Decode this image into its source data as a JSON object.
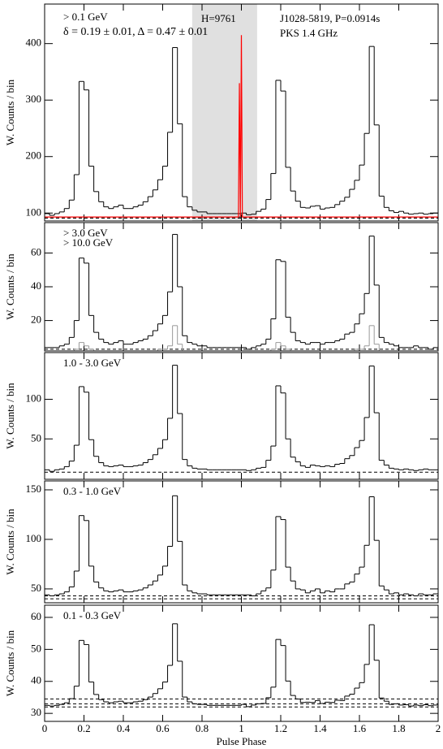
{
  "chart_data": [
    {
      "type": "histogram",
      "ylabel": "W. Counts / bin",
      "xlim": [
        0,
        2
      ],
      "ylim": [
        86,
        470
      ],
      "yticks": [
        100,
        200,
        300,
        400
      ],
      "shade": [
        0.75,
        1.08
      ],
      "shade_color": "#e0e0e0",
      "background_levels": [
        91,
        93
      ],
      "annotations": [
        {
          "text": "δ = 0.19 ± 0.01, Δ = 0.47 ± 0.01",
          "color": "#ff0000"
        },
        {
          "text": "H=9761",
          "color": "#000000"
        },
        {
          "text": "J1028-5819, P=0.0914s",
          "color": "#00cc00"
        }
      ],
      "bins": [
        0,
        0.025,
        0.05,
        0.075,
        0.1,
        0.125,
        0.15,
        0.175,
        0.2,
        0.225,
        0.25,
        0.275,
        0.3,
        0.325,
        0.35,
        0.375,
        0.4,
        0.425,
        0.45,
        0.475,
        0.5,
        0.525,
        0.55,
        0.575,
        0.6,
        0.625,
        0.65,
        0.675,
        0.7,
        0.725,
        0.75,
        0.775,
        0.8,
        0.825,
        0.85,
        0.875,
        0.9,
        0.925,
        0.95,
        0.975,
        1,
        1.025,
        1.05,
        1.075,
        1.1,
        1.125,
        1.15,
        1.175,
        1.2,
        1.225,
        1.25,
        1.275,
        1.3,
        1.325,
        1.35,
        1.375,
        1.4,
        1.425,
        1.45,
        1.475,
        1.5,
        1.525,
        1.55,
        1.575,
        1.6,
        1.625,
        1.65,
        1.675,
        1.7,
        1.725,
        1.75,
        1.775,
        1.8,
        1.825,
        1.85,
        1.875,
        1.9,
        1.925,
        1.95,
        1.975,
        2
      ],
      "series": [
        {
          "name": "> 0.1 GeV",
          "color": "#000000",
          "values": [
            99,
            96,
            99,
            102,
            108,
            123,
            168,
            333,
            318,
            183,
            138,
            120,
            111,
            108,
            111,
            114,
            108,
            108,
            111,
            114,
            120,
            129,
            141,
            159,
            183,
            243,
            393,
            258,
            129,
            111,
            105,
            102,
            102,
            99,
            99,
            99,
            99,
            99,
            99,
            99,
            100,
            97,
            98,
            103,
            107,
            124,
            170,
            335,
            316,
            181,
            139,
            121,
            110,
            109,
            112,
            113,
            107,
            109,
            110,
            115,
            121,
            128,
            142,
            158,
            185,
            241,
            395,
            256,
            130,
            110,
            104,
            101,
            103,
            100,
            98,
            99,
            100,
            98,
            99,
            100
          ]
        },
        {
          "name": "PKS 1.4 GHz",
          "color": "#ff0000",
          "x": [
            0,
            0.985,
            0.99,
            0.995,
            1.0,
            1.005,
            1.01,
            2.0
          ],
          "values": [
            93,
            93,
            330,
            93,
            415,
            93,
            93,
            93
          ]
        }
      ]
    },
    {
      "type": "histogram",
      "ylabel": "W. Counts / bin",
      "xlim": [
        0,
        2
      ],
      "ylim": [
        2,
        78
      ],
      "yticks": [
        20,
        40,
        60
      ],
      "background_levels": [
        3
      ],
      "bins": [
        0,
        0.025,
        0.05,
        0.075,
        0.1,
        0.125,
        0.15,
        0.175,
        0.2,
        0.225,
        0.25,
        0.275,
        0.3,
        0.325,
        0.35,
        0.375,
        0.4,
        0.425,
        0.45,
        0.475,
        0.5,
        0.525,
        0.55,
        0.575,
        0.6,
        0.625,
        0.65,
        0.675,
        0.7,
        0.725,
        0.75,
        0.775,
        0.8,
        0.825,
        0.85,
        0.875,
        0.9,
        0.925,
        0.95,
        0.975,
        1,
        1.025,
        1.05,
        1.075,
        1.1,
        1.125,
        1.15,
        1.175,
        1.2,
        1.225,
        1.25,
        1.275,
        1.3,
        1.325,
        1.35,
        1.375,
        1.4,
        1.425,
        1.45,
        1.475,
        1.5,
        1.525,
        1.55,
        1.575,
        1.6,
        1.625,
        1.65,
        1.675,
        1.7,
        1.725,
        1.75,
        1.775,
        1.8,
        1.825,
        1.85,
        1.875,
        1.9,
        1.925,
        1.95,
        1.975,
        2
      ],
      "series": [
        {
          "name": "> 3.0 GeV",
          "color": "#000000",
          "values": [
            4,
            4,
            4,
            5,
            6,
            10,
            20,
            57,
            54,
            23,
            13,
            9,
            7,
            6,
            7,
            8,
            6,
            6,
            7,
            8,
            9,
            11,
            14,
            18,
            23,
            37,
            71,
            40,
            11,
            7,
            6,
            5,
            5,
            4,
            4,
            4,
            4,
            4,
            4,
            4,
            4,
            3,
            4,
            5,
            6,
            9,
            21,
            56,
            55,
            22,
            13,
            8,
            7,
            6,
            7,
            7,
            6,
            7,
            7,
            8,
            9,
            12,
            13,
            18,
            24,
            36,
            70,
            41,
            10,
            7,
            6,
            5,
            4,
            4,
            4,
            5,
            4,
            4,
            3,
            4
          ]
        },
        {
          "name": "> 10.0 GeV",
          "color": "#999999",
          "values": [
            2,
            2,
            2,
            2,
            2,
            2,
            3,
            7,
            5,
            3,
            2,
            2,
            2,
            2,
            2,
            2,
            2,
            2,
            2,
            2,
            2,
            2,
            2,
            3,
            3,
            5,
            17,
            6,
            2,
            2,
            2,
            2,
            2,
            2,
            2,
            2,
            2,
            2,
            2,
            2,
            2,
            2,
            2,
            2,
            2,
            2,
            3,
            7,
            5,
            3,
            2,
            2,
            2,
            2,
            2,
            2,
            2,
            2,
            2,
            2,
            2,
            2,
            2,
            3,
            3,
            5,
            17,
            6,
            2,
            2,
            2,
            2,
            2,
            2,
            2,
            2,
            2,
            2,
            2,
            2
          ]
        }
      ]
    },
    {
      "type": "histogram",
      "ylabel": "W. Counts / bin",
      "xlim": [
        0,
        2
      ],
      "ylim": [
        -1,
        159
      ],
      "yticks": [
        50,
        100
      ],
      "background_levels": [
        8
      ],
      "bins": [
        0,
        0.025,
        0.05,
        0.075,
        0.1,
        0.125,
        0.15,
        0.175,
        0.2,
        0.225,
        0.25,
        0.275,
        0.3,
        0.325,
        0.35,
        0.375,
        0.4,
        0.425,
        0.45,
        0.475,
        0.5,
        0.525,
        0.55,
        0.575,
        0.6,
        0.625,
        0.65,
        0.675,
        0.7,
        0.725,
        0.75,
        0.775,
        0.8,
        0.825,
        0.85,
        0.875,
        0.9,
        0.925,
        0.95,
        0.975,
        1,
        1.025,
        1.05,
        1.075,
        1.1,
        1.125,
        1.15,
        1.175,
        1.2,
        1.225,
        1.25,
        1.275,
        1.3,
        1.325,
        1.35,
        1.375,
        1.4,
        1.425,
        1.45,
        1.475,
        1.5,
        1.525,
        1.55,
        1.575,
        1.6,
        1.625,
        1.65,
        1.675,
        1.7,
        1.725,
        1.75,
        1.775,
        1.8,
        1.825,
        1.85,
        1.875,
        1.9,
        1.925,
        1.95,
        1.975,
        2
      ],
      "series": [
        {
          "name": "1.0 - 3.0 GeV",
          "color": "#000000",
          "values": [
            11,
            9,
            11,
            12,
            15,
            22,
            42,
            116,
            109,
            49,
            28,
            20,
            16,
            15,
            16,
            17,
            15,
            15,
            16,
            17,
            20,
            24,
            30,
            38,
            49,
            76,
            143,
            82,
            24,
            16,
            13,
            12,
            12,
            11,
            11,
            11,
            11,
            11,
            11,
            11,
            11,
            10,
            11,
            13,
            14,
            23,
            41,
            117,
            108,
            50,
            27,
            21,
            16,
            14,
            17,
            16,
            15,
            16,
            15,
            18,
            19,
            25,
            29,
            39,
            48,
            77,
            142,
            83,
            23,
            17,
            13,
            12,
            11,
            12,
            11,
            10,
            11,
            12,
            11,
            11
          ]
        }
      ]
    },
    {
      "type": "histogram",
      "ylabel": "W. Counts / bin",
      "xlim": [
        0,
        2
      ],
      "ylim": [
        36,
        159
      ],
      "yticks": [
        50,
        100,
        150
      ],
      "background_levels": [
        40,
        43
      ],
      "bins": [
        0,
        0.025,
        0.05,
        0.075,
        0.1,
        0.125,
        0.15,
        0.175,
        0.2,
        0.225,
        0.25,
        0.275,
        0.3,
        0.325,
        0.35,
        0.375,
        0.4,
        0.425,
        0.45,
        0.475,
        0.5,
        0.525,
        0.55,
        0.575,
        0.6,
        0.625,
        0.65,
        0.675,
        0.7,
        0.725,
        0.75,
        0.775,
        0.8,
        0.825,
        0.85,
        0.875,
        0.9,
        0.925,
        0.95,
        0.975,
        1,
        1.025,
        1.05,
        1.075,
        1.1,
        1.125,
        1.15,
        1.175,
        1.2,
        1.225,
        1.25,
        1.275,
        1.3,
        1.325,
        1.35,
        1.375,
        1.4,
        1.425,
        1.45,
        1.475,
        1.5,
        1.525,
        1.55,
        1.575,
        1.6,
        1.625,
        1.65,
        1.675,
        1.7,
        1.725,
        1.75,
        1.775,
        1.8,
        1.825,
        1.85,
        1.875,
        1.9,
        1.925,
        1.95,
        1.975,
        2
      ],
      "series": [
        {
          "name": "0.3 - 1.0 GeV",
          "color": "#000000",
          "values": [
            44,
            43,
            44,
            45,
            47,
            52,
            68,
            124,
            119,
            73,
            57,
            51,
            48,
            47,
            48,
            49,
            47,
            47,
            48,
            49,
            51,
            54,
            58,
            64,
            73,
            93,
            144,
            98,
            54,
            48,
            46,
            45,
            45,
            44,
            44,
            44,
            44,
            44,
            44,
            44,
            44,
            44,
            43,
            45,
            48,
            51,
            69,
            123,
            120,
            72,
            58,
            50,
            49,
            46,
            48,
            50,
            46,
            48,
            47,
            50,
            50,
            55,
            57,
            65,
            72,
            94,
            143,
            99,
            53,
            49,
            45,
            46,
            44,
            45,
            44,
            43,
            45,
            44,
            44,
            45
          ]
        }
      ]
    },
    {
      "type": "histogram",
      "ylabel": "W. Counts / bin",
      "xlabel": "Pulse Phase",
      "xlim": [
        0,
        2
      ],
      "ylim": [
        27.5,
        63.8
      ],
      "yticks": [
        30,
        40,
        50,
        60
      ],
      "xticks": [
        0,
        0.2,
        0.4,
        0.6,
        0.8,
        1,
        1.2,
        1.4,
        1.6,
        1.8,
        2
      ],
      "background_levels": [
        32,
        33,
        34.5
      ],
      "bins": [
        0,
        0.025,
        0.05,
        0.075,
        0.1,
        0.125,
        0.15,
        0.175,
        0.2,
        0.225,
        0.25,
        0.275,
        0.3,
        0.325,
        0.35,
        0.375,
        0.4,
        0.425,
        0.45,
        0.475,
        0.5,
        0.525,
        0.55,
        0.575,
        0.6,
        0.625,
        0.65,
        0.675,
        0.7,
        0.725,
        0.75,
        0.775,
        0.8,
        0.825,
        0.85,
        0.875,
        0.9,
        0.925,
        0.95,
        0.975,
        1,
        1.025,
        1.05,
        1.075,
        1.1,
        1.125,
        1.15,
        1.175,
        1.2,
        1.225,
        1.25,
        1.275,
        1.3,
        1.325,
        1.35,
        1.375,
        1.4,
        1.425,
        1.45,
        1.475,
        1.5,
        1.525,
        1.55,
        1.575,
        1.6,
        1.625,
        1.65,
        1.675,
        1.7,
        1.725,
        1.75,
        1.775,
        1.8,
        1.825,
        1.85,
        1.875,
        1.9,
        1.925,
        1.95,
        1.975,
        2
      ],
      "series": [
        {
          "name": "0.1 - 0.3 GeV",
          "color": "#000000",
          "values": [
            32.5,
            32.3,
            32.5,
            32.8,
            33.3,
            34.6,
            38.5,
            52.8,
            51.5,
            39.8,
            35.9,
            34.3,
            33.6,
            33.3,
            33.6,
            33.8,
            33.3,
            33.3,
            33.6,
            33.8,
            34.3,
            35.1,
            36.2,
            37.7,
            39.8,
            45,
            58,
            46.3,
            35.1,
            33.6,
            33,
            32.8,
            32.8,
            32.5,
            32.5,
            32.5,
            32.5,
            32.5,
            32.5,
            32.5,
            32.8,
            32.1,
            32.6,
            33,
            33.1,
            34.9,
            38.2,
            53.1,
            51.2,
            40.1,
            35.6,
            34.5,
            33.4,
            33.5,
            33.4,
            34,
            33.1,
            33.5,
            33.4,
            34.1,
            34,
            35.4,
            36,
            37.9,
            39.6,
            45.3,
            57.7,
            46.6,
            34.8,
            33.8,
            32.8,
            33,
            32.6,
            32.7,
            32.3,
            32.6,
            32.4,
            32.7,
            32.4,
            32.6
          ]
        }
      ]
    }
  ]
}
